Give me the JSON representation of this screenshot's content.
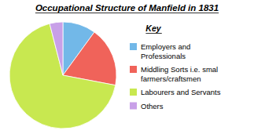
{
  "chart_data": {
    "type": "pie",
    "title": "Occupational Structure of Manfield in 1831",
    "annotations": [
      "Key"
    ],
    "categories": [
      "Employers and\nProfessionals",
      "Middling Sorts i.e. smal\nfarmers/craftsmen",
      "Labourers and Servants",
      "Others"
    ],
    "values": [
      10,
      18,
      68,
      4
    ],
    "colors": [
      "#72b8e8",
      "#f0635a",
      "#c8e850",
      "#c8a0e8"
    ],
    "legend": "right"
  }
}
